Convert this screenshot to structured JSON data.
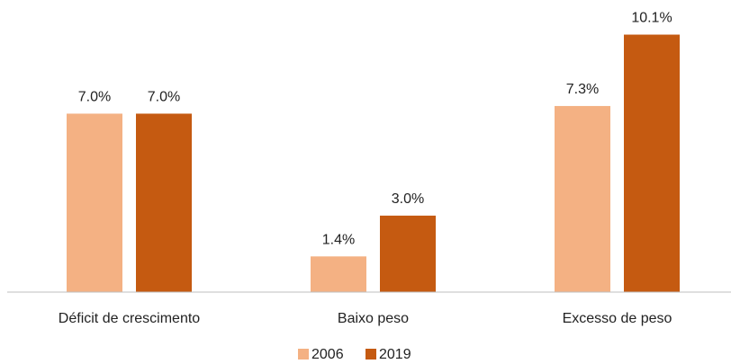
{
  "chart_data": {
    "type": "bar",
    "categories": [
      "Déficit de crescimento",
      "Baixo peso",
      "Excesso de peso"
    ],
    "series": [
      {
        "name": "2006",
        "color": "#f4b183",
        "values": [
          7.0,
          1.4,
          7.3
        ],
        "value_labels": [
          "7.0%",
          "1.4%",
          "7.3%"
        ]
      },
      {
        "name": "2019",
        "color": "#c55a11",
        "values": [
          7.0,
          3.0,
          10.1
        ],
        "value_labels": [
          "7.0%",
          "3.0%",
          "10.1%"
        ]
      }
    ],
    "ylim": [
      0,
      11
    ],
    "legend": "bottom"
  }
}
